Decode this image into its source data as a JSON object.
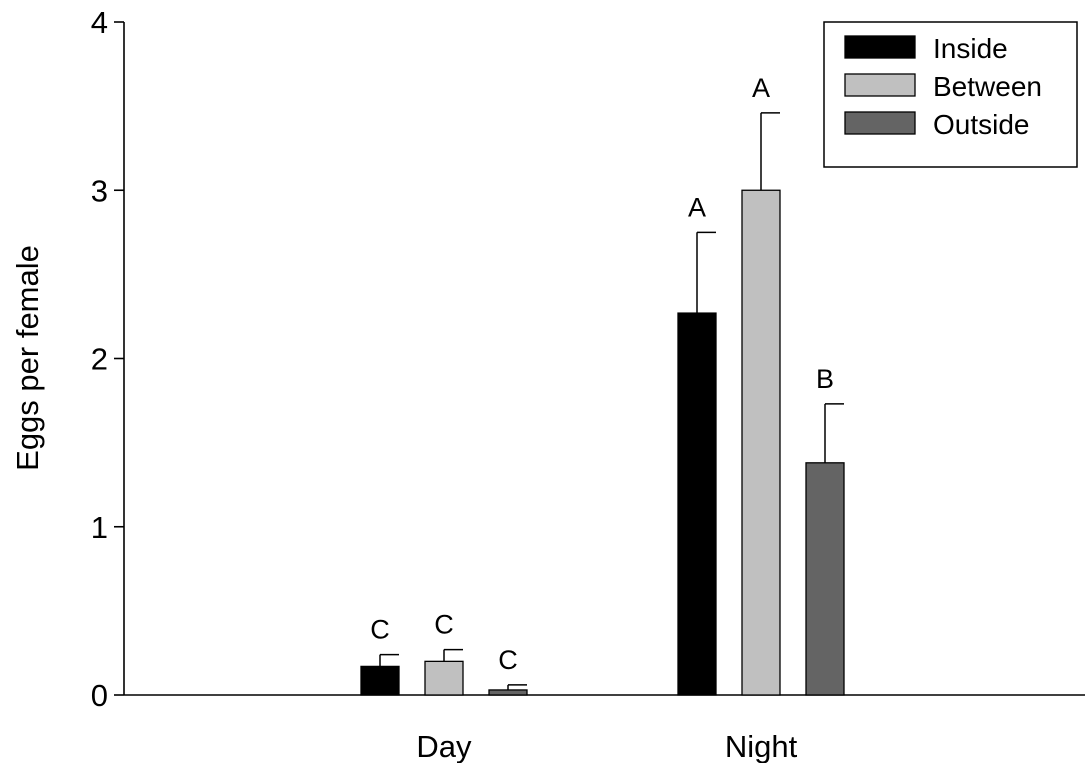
{
  "chart_data": {
    "type": "bar",
    "title": "",
    "xlabel": "",
    "ylabel": "Eggs per female",
    "ylim": [
      0,
      4
    ],
    "yticks": [
      "0",
      "1",
      "2",
      "3",
      "4"
    ],
    "categories": [
      "Day",
      "Night"
    ],
    "grid": false,
    "legend_position": "top-right",
    "series": [
      {
        "name": "Inside",
        "color": "#000000",
        "values": [
          0.17,
          2.27
        ],
        "error": [
          0.07,
          0.48
        ],
        "letters": [
          "C",
          "A"
        ]
      },
      {
        "name": "Between",
        "color": "#c0c0c0",
        "values": [
          0.2,
          3.0
        ],
        "error": [
          0.07,
          0.46
        ],
        "letters": [
          "C",
          "A"
        ]
      },
      {
        "name": "Outside",
        "color": "#646464",
        "values": [
          0.03,
          1.38
        ],
        "error": [
          0.03,
          0.35
        ],
        "letters": [
          "C",
          "B"
        ]
      }
    ]
  }
}
